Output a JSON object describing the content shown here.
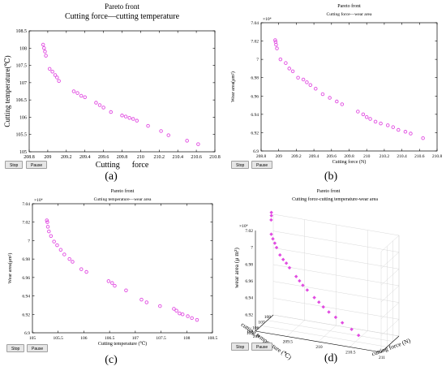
{
  "chart_data": [
    {
      "id": "a",
      "type": "scatter",
      "title": "Pareto front",
      "subtitle": "Cutting force—cutting temperature",
      "xlabel": "Cutting      force",
      "ylabel": "Cutting temperature(℃)",
      "xlim": [
        208.8,
        210.8
      ],
      "ylim": [
        105,
        108.5
      ],
      "xticks": [
        "208.8",
        "209",
        "209.2",
        "209.4",
        "209.6",
        "209.8",
        "210",
        "210.2",
        "210.4",
        "210.6",
        "210.8"
      ],
      "yticks": [
        "105",
        "105.5",
        "106",
        "106.5",
        "107",
        "107.5",
        "108",
        "108.5"
      ],
      "exponent": "",
      "grid": false,
      "marker_color": "#e14be1",
      "x": [
        208.95,
        208.96,
        208.97,
        208.98,
        209.02,
        209.05,
        209.08,
        209.1,
        209.12,
        209.28,
        209.32,
        209.36,
        209.4,
        209.52,
        209.56,
        209.6,
        209.68,
        209.8,
        209.84,
        209.88,
        209.92,
        209.96,
        210.08,
        210.22,
        210.3,
        210.5,
        210.62
      ],
      "y": [
        108.1,
        108.0,
        107.9,
        107.78,
        107.4,
        107.32,
        107.22,
        107.15,
        107.05,
        106.75,
        106.7,
        106.62,
        106.58,
        106.42,
        106.35,
        106.28,
        106.15,
        106.05,
        106.02,
        105.98,
        105.95,
        105.9,
        105.75,
        105.6,
        105.48,
        105.32,
        105.22
      ]
    },
    {
      "id": "b",
      "type": "scatter",
      "title": "Pareto front",
      "subtitle": "Cutting force—wear area",
      "xlabel": "Cutting force (N)",
      "ylabel": "Wear area(μm²)",
      "xlim": [
        208.8,
        210.8
      ],
      "ylim": [
        6.9,
        7.04
      ],
      "xticks": [
        "208.8",
        "209",
        "209.2",
        "209.4",
        "209.6",
        "209.8",
        "210",
        "210.2",
        "210.4",
        "210.6",
        "210.8"
      ],
      "yticks": [
        "6.9",
        "6.92",
        "6.94",
        "6.96",
        "6.98",
        "7",
        "7.02",
        "7.04"
      ],
      "exponent": "×10⁴",
      "grid": false,
      "marker_color": "#e14be1",
      "x": [
        208.96,
        208.965,
        208.97,
        208.98,
        209.02,
        209.08,
        209.12,
        209.16,
        209.22,
        209.28,
        209.32,
        209.36,
        209.42,
        209.5,
        209.58,
        209.66,
        209.72,
        209.9,
        209.96,
        210.0,
        210.04,
        210.1,
        210.16,
        210.24,
        210.3,
        210.36,
        210.44,
        210.5,
        210.64
      ],
      "y": [
        7.021,
        7.019,
        7.016,
        7.012,
        7.0,
        6.996,
        6.99,
        6.987,
        6.98,
        6.978,
        6.975,
        6.972,
        6.968,
        6.962,
        6.958,
        6.954,
        6.951,
        6.943,
        6.94,
        6.937,
        6.935,
        6.932,
        6.93,
        6.928,
        6.926,
        6.923,
        6.921,
        6.919,
        6.914
      ]
    },
    {
      "id": "c",
      "type": "scatter",
      "title": "Pareto front",
      "subtitle": "Cutting temperature—wear area",
      "xlabel": "Cutting temperature (℃)",
      "ylabel": "Wear area(μm²)",
      "xlim": [
        105,
        108.5
      ],
      "ylim": [
        6.9,
        7.04
      ],
      "xticks": [
        "105",
        "105.5",
        "106",
        "106.5",
        "107",
        "107.5",
        "108",
        "108.5"
      ],
      "yticks": [
        "6.9",
        "6.92",
        "6.94",
        "6.96",
        "6.98",
        "7",
        "7.02",
        "7.04"
      ],
      "exponent": "×10⁴",
      "grid": false,
      "marker_color": "#e14be1",
      "x": [
        105.28,
        105.29,
        105.3,
        105.32,
        105.36,
        105.42,
        105.48,
        105.55,
        105.62,
        105.72,
        105.78,
        105.95,
        106.05,
        106.48,
        106.55,
        106.6,
        106.82,
        107.12,
        107.22,
        107.48,
        107.75,
        107.8,
        107.86,
        107.92,
        108.02,
        108.1,
        108.2
      ],
      "y": [
        7.022,
        7.02,
        7.015,
        7.01,
        7.005,
        6.999,
        6.995,
        6.99,
        6.985,
        6.98,
        6.977,
        6.969,
        6.966,
        6.956,
        6.954,
        6.951,
        6.946,
        6.936,
        6.933,
        6.929,
        6.926,
        6.924,
        6.921,
        6.92,
        6.918,
        6.916,
        6.914
      ]
    },
    {
      "id": "d",
      "type": "scatter",
      "title": "Pareto front",
      "subtitle": "Cutting force-cutting temperature-wear area",
      "xlabel": "cutting force (N)",
      "ylabel": "cutting temperature (℃)",
      "zlabel": "wear area (μ m²)",
      "xlim": [
        209,
        211
      ],
      "ylim": [
        105,
        108
      ],
      "zlim": [
        6.9,
        7.02
      ],
      "xticks": [
        "209",
        "209.5",
        "210",
        "210.5",
        "211"
      ],
      "yticks": [
        "105",
        "106",
        "107",
        "108"
      ],
      "zticks": [
        "6.9",
        "6.92",
        "6.94",
        "6.96",
        "6.98",
        "7",
        "7.02"
      ],
      "exponent": "×10⁴",
      "grid": true,
      "marker_color": "#e14be1",
      "x": [
        208.96,
        208.97,
        208.98,
        209.02,
        209.06,
        209.1,
        209.14,
        209.22,
        209.28,
        209.34,
        209.4,
        209.52,
        209.58,
        209.64,
        209.72,
        209.84,
        209.92,
        210.0,
        210.1,
        210.22,
        210.34,
        210.5,
        210.62
      ],
      "y": [
        108.1,
        108.0,
        107.85,
        107.45,
        107.3,
        107.2,
        107.08,
        106.8,
        106.7,
        106.6,
        106.5,
        106.35,
        106.28,
        106.2,
        106.1,
        106.02,
        105.95,
        105.85,
        105.72,
        105.6,
        105.45,
        105.32,
        105.22
      ],
      "z": [
        7.021,
        7.018,
        7.014,
        7.0,
        6.996,
        6.992,
        6.988,
        6.982,
        6.978,
        6.975,
        6.971,
        6.963,
        6.959,
        6.955,
        6.951,
        6.944,
        6.94,
        6.936,
        6.932,
        6.928,
        6.924,
        6.919,
        6.914
      ]
    }
  ],
  "ui": {
    "stop_label": "Stop",
    "pause_label": "Pause",
    "captions": [
      "(a)",
      "(b)",
      "(c)",
      "(d)"
    ]
  }
}
